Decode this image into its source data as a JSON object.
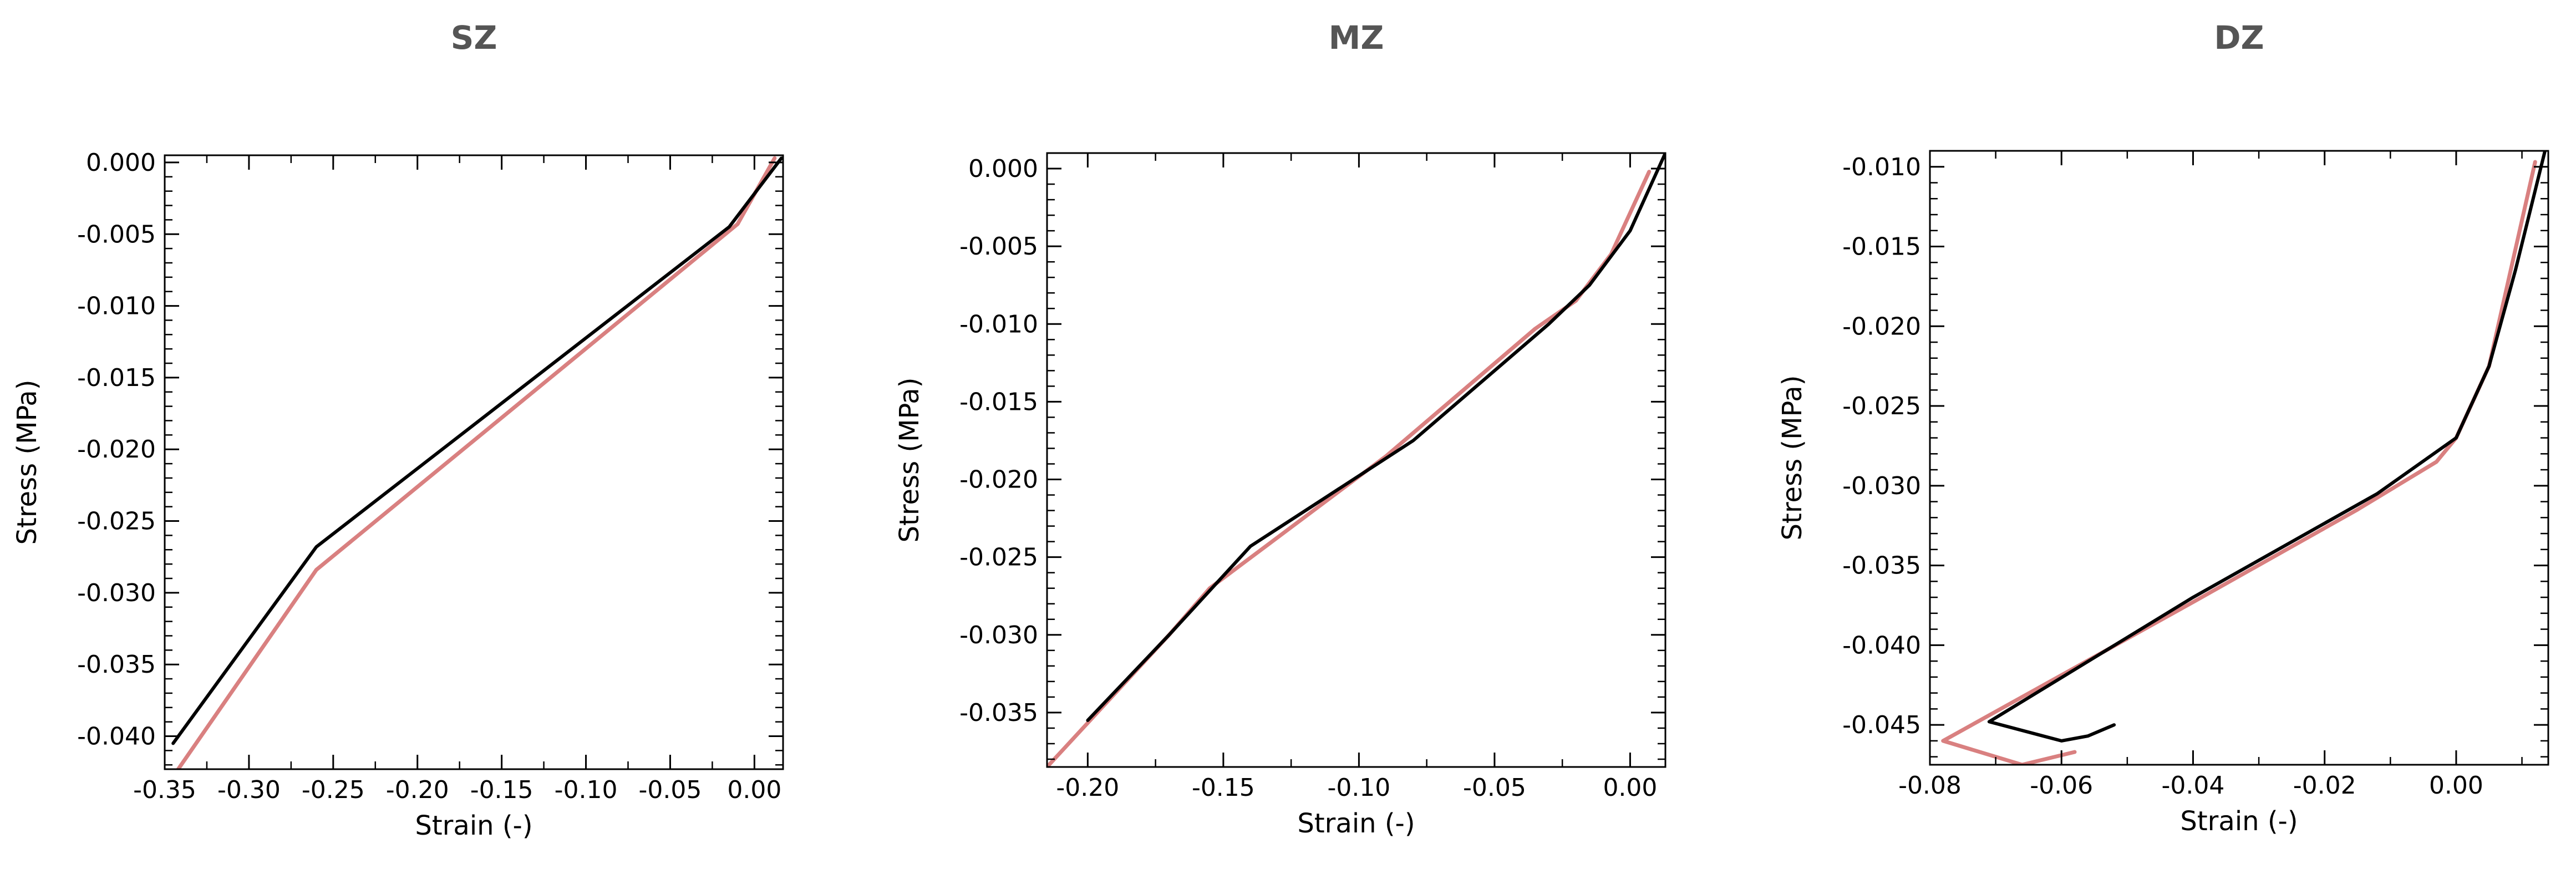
{
  "chart_data": [
    {
      "type": "line",
      "title": "SZ",
      "xlabel": "Strain (-)",
      "ylabel": "Stress (MPa)",
      "xlim": [
        -0.35,
        0.017
      ],
      "ylim": [
        -0.0423,
        0.0005
      ],
      "xticks": [
        -0.35,
        -0.3,
        -0.25,
        -0.2,
        -0.15,
        -0.1,
        -0.05,
        0.0
      ],
      "xtick_labels": [
        "-0.35",
        "-0.30",
        "-0.25",
        "-0.20",
        "-0.15",
        "-0.10",
        "-0.05",
        "0.00"
      ],
      "yticks": [
        0.0,
        -0.005,
        -0.01,
        -0.015,
        -0.02,
        -0.025,
        -0.03,
        -0.035,
        -0.04
      ],
      "ytick_labels": [
        "0.000",
        "-0.005",
        "-0.010",
        "-0.015",
        "-0.020",
        "-0.025",
        "-0.030",
        "-0.035",
        "-0.040"
      ],
      "grid": false,
      "series": [
        {
          "color": "#d98080",
          "x": [
            -0.342,
            -0.26,
            -0.01,
            0.012
          ],
          "y": [
            -0.0423,
            -0.0284,
            -0.0043,
            0.0003
          ]
        },
        {
          "color": "#000000",
          "x": [
            -0.345,
            -0.26,
            -0.015,
            0.016
          ],
          "y": [
            -0.0405,
            -0.0268,
            -0.0045,
            0.0003
          ]
        }
      ]
    },
    {
      "type": "line",
      "title": "MZ",
      "xlabel": "Strain (-)",
      "ylabel": "Stress (MPa)",
      "xlim": [
        -0.215,
        0.013
      ],
      "ylim": [
        -0.0385,
        0.001
      ],
      "xticks": [
        -0.2,
        -0.15,
        -0.1,
        -0.05,
        0.0
      ],
      "xtick_labels": [
        "-0.20",
        "-0.15",
        "-0.10",
        "-0.05",
        "0.00"
      ],
      "yticks": [
        0.0,
        -0.005,
        -0.01,
        -0.015,
        -0.02,
        -0.025,
        -0.03,
        -0.035
      ],
      "ytick_labels": [
        "0.000",
        "-0.005",
        "-0.010",
        "-0.015",
        "-0.020",
        "-0.025",
        "-0.030",
        "-0.035"
      ],
      "grid": false,
      "series": [
        {
          "color": "#d98080",
          "x": [
            -0.215,
            -0.17,
            -0.155,
            -0.09,
            -0.035,
            -0.02,
            -0.007,
            0.007
          ],
          "y": [
            -0.0385,
            -0.03,
            -0.027,
            -0.0185,
            -0.0103,
            -0.0085,
            -0.0055,
            -0.0002
          ]
        },
        {
          "color": "#000000",
          "x": [
            -0.2,
            -0.17,
            -0.14,
            -0.08,
            -0.03,
            -0.015,
            0.0,
            0.013
          ],
          "y": [
            -0.0355,
            -0.03,
            -0.0243,
            -0.0175,
            -0.01,
            -0.0075,
            -0.004,
            0.001
          ]
        }
      ]
    },
    {
      "type": "line",
      "title": "DZ",
      "xlabel": "Strain (-)",
      "ylabel": "Stress (MPa)",
      "xlim": [
        -0.08,
        0.014
      ],
      "ylim": [
        -0.0475,
        -0.009
      ],
      "xticks": [
        -0.08,
        -0.06,
        -0.04,
        -0.02,
        0.0
      ],
      "xtick_labels": [
        "-0.08",
        "-0.06",
        "-0.04",
        "-0.02",
        "0.00"
      ],
      "yticks": [
        -0.01,
        -0.015,
        -0.02,
        -0.025,
        -0.03,
        -0.035,
        -0.04,
        -0.045
      ],
      "ytick_labels": [
        "-0.010",
        "-0.015",
        "-0.020",
        "-0.025",
        "-0.030",
        "-0.035",
        "-0.040",
        "-0.045"
      ],
      "grid": false,
      "series": [
        {
          "color": "#d98080",
          "x": [
            -0.058,
            -0.066,
            -0.078,
            -0.04,
            -0.015,
            -0.003,
            0.0,
            0.005,
            0.012
          ],
          "y": [
            -0.0467,
            -0.0475,
            -0.046,
            -0.0373,
            -0.0315,
            -0.0285,
            -0.027,
            -0.0225,
            -0.0097
          ]
        },
        {
          "color": "#000000",
          "x": [
            -0.052,
            -0.056,
            -0.06,
            -0.071,
            -0.04,
            -0.012,
            0.0,
            0.005,
            0.009,
            0.0135
          ],
          "y": [
            -0.045,
            -0.0457,
            -0.046,
            -0.0448,
            -0.037,
            -0.0305,
            -0.027,
            -0.0225,
            -0.0165,
            -0.009
          ]
        }
      ]
    }
  ]
}
